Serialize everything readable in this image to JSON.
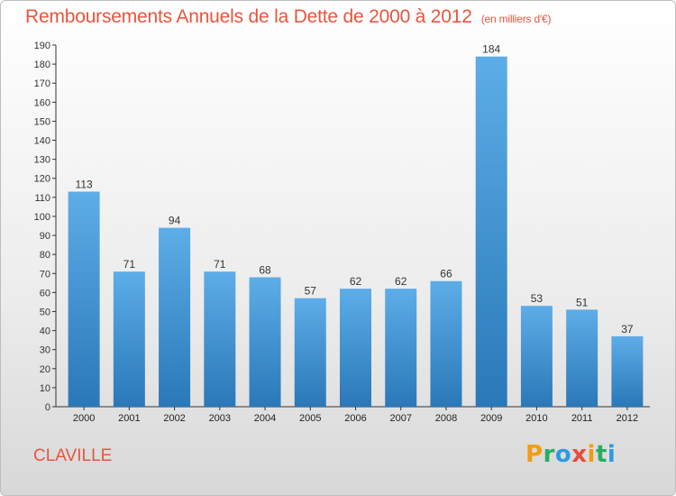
{
  "header": {
    "title": "Remboursements Annuels de la Dette de 2000 à 2012",
    "unit": "(en milliers d'€)"
  },
  "footer": {
    "city": "CLAVILLE",
    "logo": [
      "P",
      "r",
      "o",
      "x",
      "i",
      "t",
      "i"
    ]
  },
  "colors": {
    "title": "#e8553f",
    "bar_top": "#5dade8",
    "bar_bottom": "#2a78b8",
    "logo": [
      "#f39c12",
      "#27ae60",
      "#2c9be0",
      "#e74c3c",
      "#f39c12",
      "#27ae60",
      "#2c9be0"
    ]
  },
  "chart_data": {
    "type": "bar",
    "title": "Remboursements Annuels de la Dette de 2000 à 2012",
    "subtitle": "(en milliers d'€)",
    "xlabel": "",
    "ylabel": "",
    "categories": [
      "2000",
      "2001",
      "2002",
      "2003",
      "2004",
      "2005",
      "2006",
      "2007",
      "2008",
      "2009",
      "2010",
      "2011",
      "2012"
    ],
    "values": [
      113,
      71,
      94,
      71,
      68,
      57,
      62,
      62,
      66,
      184,
      53,
      51,
      37
    ],
    "ylim": [
      0,
      190
    ],
    "ytick_step": 10,
    "grid": false,
    "legend": "none"
  }
}
